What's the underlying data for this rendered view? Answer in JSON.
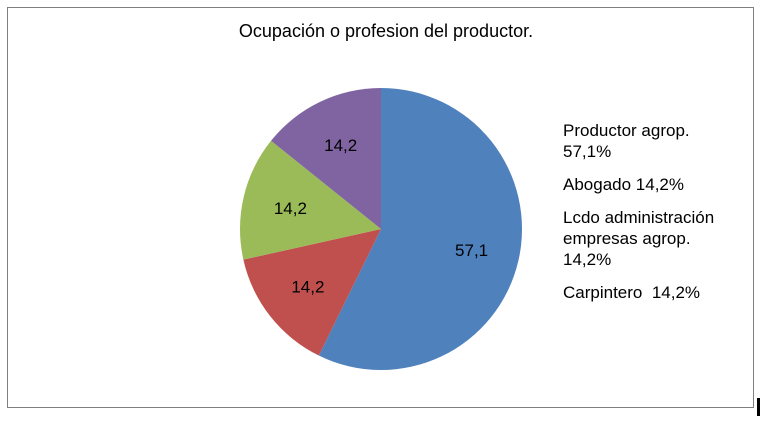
{
  "chart_data": {
    "type": "pie",
    "title": "Ocupación o profesion del productor.",
    "slices": [
      {
        "label": "Productor agrop. 57,1%",
        "value": 57.1,
        "data_label": "57,1",
        "color": "#4F81BD"
      },
      {
        "label": "Abogado 14,2%",
        "value": 14.2,
        "data_label": "14,2",
        "color": "#C0504D"
      },
      {
        "label": "Lcdo administración empresas agrop. 14,2%",
        "value": 14.2,
        "data_label": "14,2",
        "color": "#9BBB59"
      },
      {
        "label": "Carpintero  14,2%",
        "value": 14.2,
        "data_label": "14,2",
        "color": "#8064A2"
      }
    ],
    "legend": [
      {
        "lines": [
          "Productor agrop.",
          "57,1%"
        ]
      },
      {
        "lines": [
          "Abogado 14,2%"
        ]
      },
      {
        "lines": [
          "Lcdo administración",
          "empresas agrop.",
          "14,2%"
        ]
      },
      {
        "lines": [
          "Carpintero  14,2%"
        ]
      }
    ],
    "legend_position": "right",
    "start_angle": "12 o'clock",
    "direction": "clockwise"
  }
}
